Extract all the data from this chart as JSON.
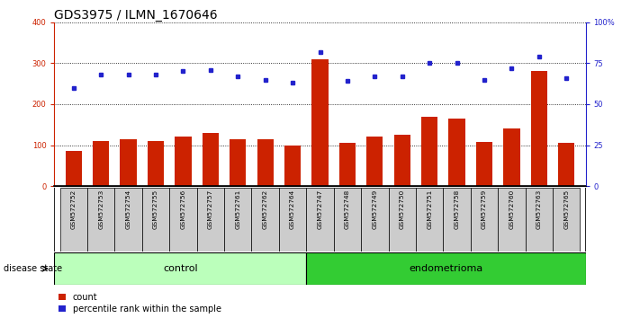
{
  "title": "GDS3975 / ILMN_1670646",
  "samples": [
    "GSM572752",
    "GSM572753",
    "GSM572754",
    "GSM572755",
    "GSM572756",
    "GSM572757",
    "GSM572761",
    "GSM572762",
    "GSM572764",
    "GSM572747",
    "GSM572748",
    "GSM572749",
    "GSM572750",
    "GSM572751",
    "GSM572758",
    "GSM572759",
    "GSM572760",
    "GSM572763",
    "GSM572765"
  ],
  "counts": [
    85,
    110,
    115,
    110,
    120,
    130,
    115,
    115,
    100,
    310,
    105,
    120,
    125,
    170,
    165,
    107,
    140,
    280,
    105
  ],
  "percentiles": [
    60,
    68,
    68,
    68,
    70,
    71,
    67,
    65,
    63,
    82,
    64,
    67,
    67,
    75,
    75,
    65,
    72,
    79,
    66
  ],
  "control_count": 9,
  "endometrioma_count": 10,
  "ylim_left": [
    0,
    400
  ],
  "ylim_right": [
    0,
    100
  ],
  "yticks_left": [
    0,
    100,
    200,
    300,
    400
  ],
  "yticks_right": [
    0,
    25,
    50,
    75,
    100
  ],
  "ytick_labels_right": [
    "0",
    "25",
    "50",
    "75",
    "100%"
  ],
  "bar_color": "#cc2200",
  "dot_color": "#2222cc",
  "control_color": "#bbffbb",
  "endometrioma_color": "#33cc33",
  "background_color": "#ffffff",
  "tick_label_bg": "#cccccc",
  "disease_state_label": "disease state",
  "control_label": "control",
  "endometrioma_label": "endometrioma",
  "legend_count_label": "count",
  "legend_percentile_label": "percentile rank within the sample",
  "title_fontsize": 10,
  "tick_fontsize": 6,
  "label_fontsize": 8,
  "bar_width": 0.6
}
